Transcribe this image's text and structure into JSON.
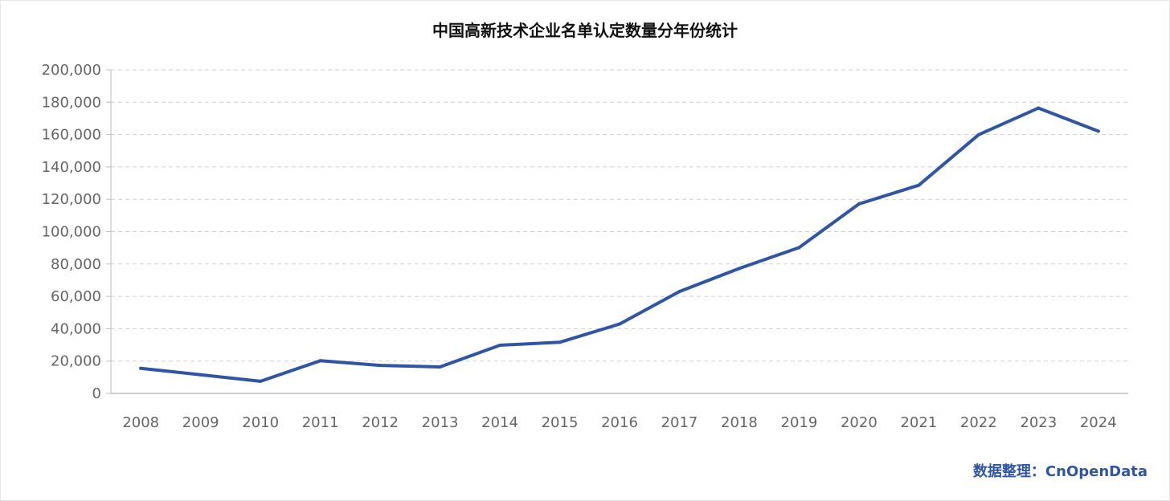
{
  "colors": {
    "line": "#2f55a4",
    "grid": "#cfcfcf",
    "axis": "#bdbdbd",
    "tick_text": "#666666",
    "credit": "#2f55a4"
  },
  "chart_data": {
    "type": "line",
    "title": "中国高新技术企业名单认定数量分年份统计",
    "xlabel": "",
    "ylabel": "",
    "x": [
      "2008",
      "2009",
      "2010",
      "2011",
      "2012",
      "2013",
      "2014",
      "2015",
      "2016",
      "2017",
      "2018",
      "2019",
      "2020",
      "2021",
      "2022",
      "2023",
      "2024"
    ],
    "series": [
      {
        "name": "认定数量",
        "values": [
          15500,
          11500,
          7500,
          20200,
          17300,
          16400,
          29800,
          31600,
          42900,
          63000,
          77200,
          90100,
          117100,
          128700,
          159900,
          176400,
          162100
        ]
      }
    ],
    "ylim": [
      0,
      200000
    ],
    "y_ticks": [
      0,
      20000,
      40000,
      60000,
      80000,
      100000,
      120000,
      140000,
      160000,
      180000,
      200000
    ],
    "y_tick_labels": [
      "0",
      "20,000",
      "40,000",
      "60,000",
      "80,000",
      "100,000",
      "120,000",
      "140,000",
      "160,000",
      "180,000",
      "200,000"
    ],
    "grid": true,
    "legend": "none"
  },
  "credit": "数据整理：CnOpenData"
}
